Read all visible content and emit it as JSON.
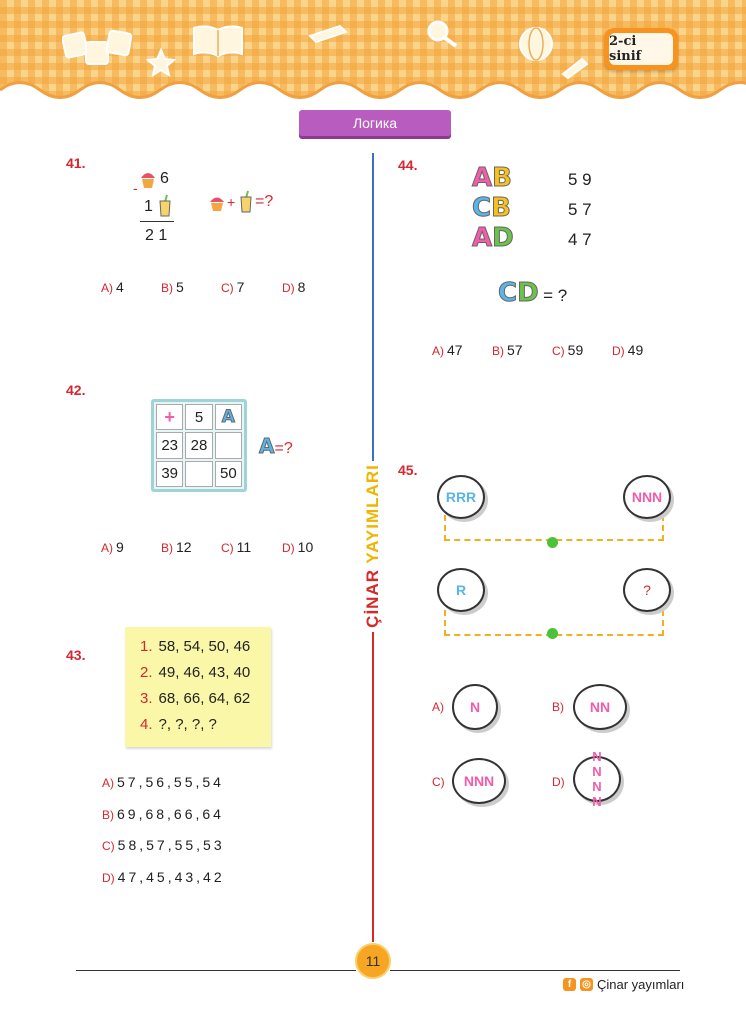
{
  "header": {
    "grade_badge": "2-ci sinif",
    "decorations": [
      "abc-blocks-icon",
      "star-icon",
      "book-icon",
      "pencil-icon",
      "magnifier-icon",
      "globe-icon"
    ]
  },
  "page_title": "Логика",
  "side_brand": {
    "part1": "ÇİNAR",
    "part2": "YAYIMLARI"
  },
  "q41": {
    "number": "41.",
    "top_value": "6",
    "minus": "-",
    "mid_value": "1",
    "result": "2 1",
    "question_suffix": "=?",
    "plus": "+",
    "answers": [
      {
        "letter": "A)",
        "value": "4"
      },
      {
        "letter": "B)",
        "value": "5"
      },
      {
        "letter": "C)",
        "value": "7"
      },
      {
        "letter": "D)",
        "value": "8"
      }
    ]
  },
  "q42": {
    "number": "42.",
    "cells": [
      "+",
      "5",
      "A",
      "23",
      "28",
      "",
      "39",
      "",
      "50"
    ],
    "question_letter": "A",
    "question_suffix": "=?",
    "answers": [
      {
        "letter": "A)",
        "value": "9"
      },
      {
        "letter": "B)",
        "value": "12"
      },
      {
        "letter": "C)",
        "value": "11"
      },
      {
        "letter": "D)",
        "value": "10"
      }
    ]
  },
  "q43": {
    "number": "43.",
    "lines": [
      {
        "n": "1.",
        "text": "58, 54, 50, 46"
      },
      {
        "n": "2.",
        "text": "49, 46, 43, 40"
      },
      {
        "n": "3.",
        "text": "68, 66, 64, 62"
      },
      {
        "n": "4.",
        "text": "?, ?, ?, ?"
      }
    ],
    "answers": [
      {
        "letter": "A)",
        "value": "57,56,55,54"
      },
      {
        "letter": "B)",
        "value": "69,68,66,64"
      },
      {
        "letter": "C)",
        "value": "58,57,55,53"
      },
      {
        "letter": "D)",
        "value": "47,45,43,42"
      }
    ]
  },
  "q44": {
    "number": "44.",
    "rows": [
      {
        "l1": "A",
        "l2": "B",
        "value": "5 9"
      },
      {
        "l1": "C",
        "l2": "B",
        "value": "5 7"
      },
      {
        "l1": "A",
        "l2": "D",
        "value": "4 7"
      }
    ],
    "question": {
      "l1": "C",
      "l2": "D",
      "suffix": "= ?"
    },
    "answers": [
      {
        "letter": "A)",
        "value": "47"
      },
      {
        "letter": "B)",
        "value": "57"
      },
      {
        "letter": "C)",
        "value": "59"
      },
      {
        "letter": "D)",
        "value": "49"
      }
    ]
  },
  "q45": {
    "number": "45.",
    "row1": {
      "left": "RRR",
      "right": "NNN"
    },
    "row2": {
      "left": "R",
      "right": "?"
    },
    "answers": [
      {
        "letter": "A)",
        "value": "N"
      },
      {
        "letter": "B)",
        "value": "NN"
      },
      {
        "letter": "C)",
        "value": "NNN"
      },
      {
        "letter": "D)",
        "value": "N N N N"
      }
    ]
  },
  "footer": {
    "page_number": "11",
    "brand": "Çinar yayımları"
  },
  "colors": {
    "accent_red": "#d6262f",
    "title_purple": "#b95cbf",
    "line_blue": "#3a6fc4",
    "pink_letter": "#f25ca9",
    "blue_letter": "#5ab4e8",
    "green_letter": "#6cc24a",
    "yellow_letter": "#f7c21b"
  }
}
